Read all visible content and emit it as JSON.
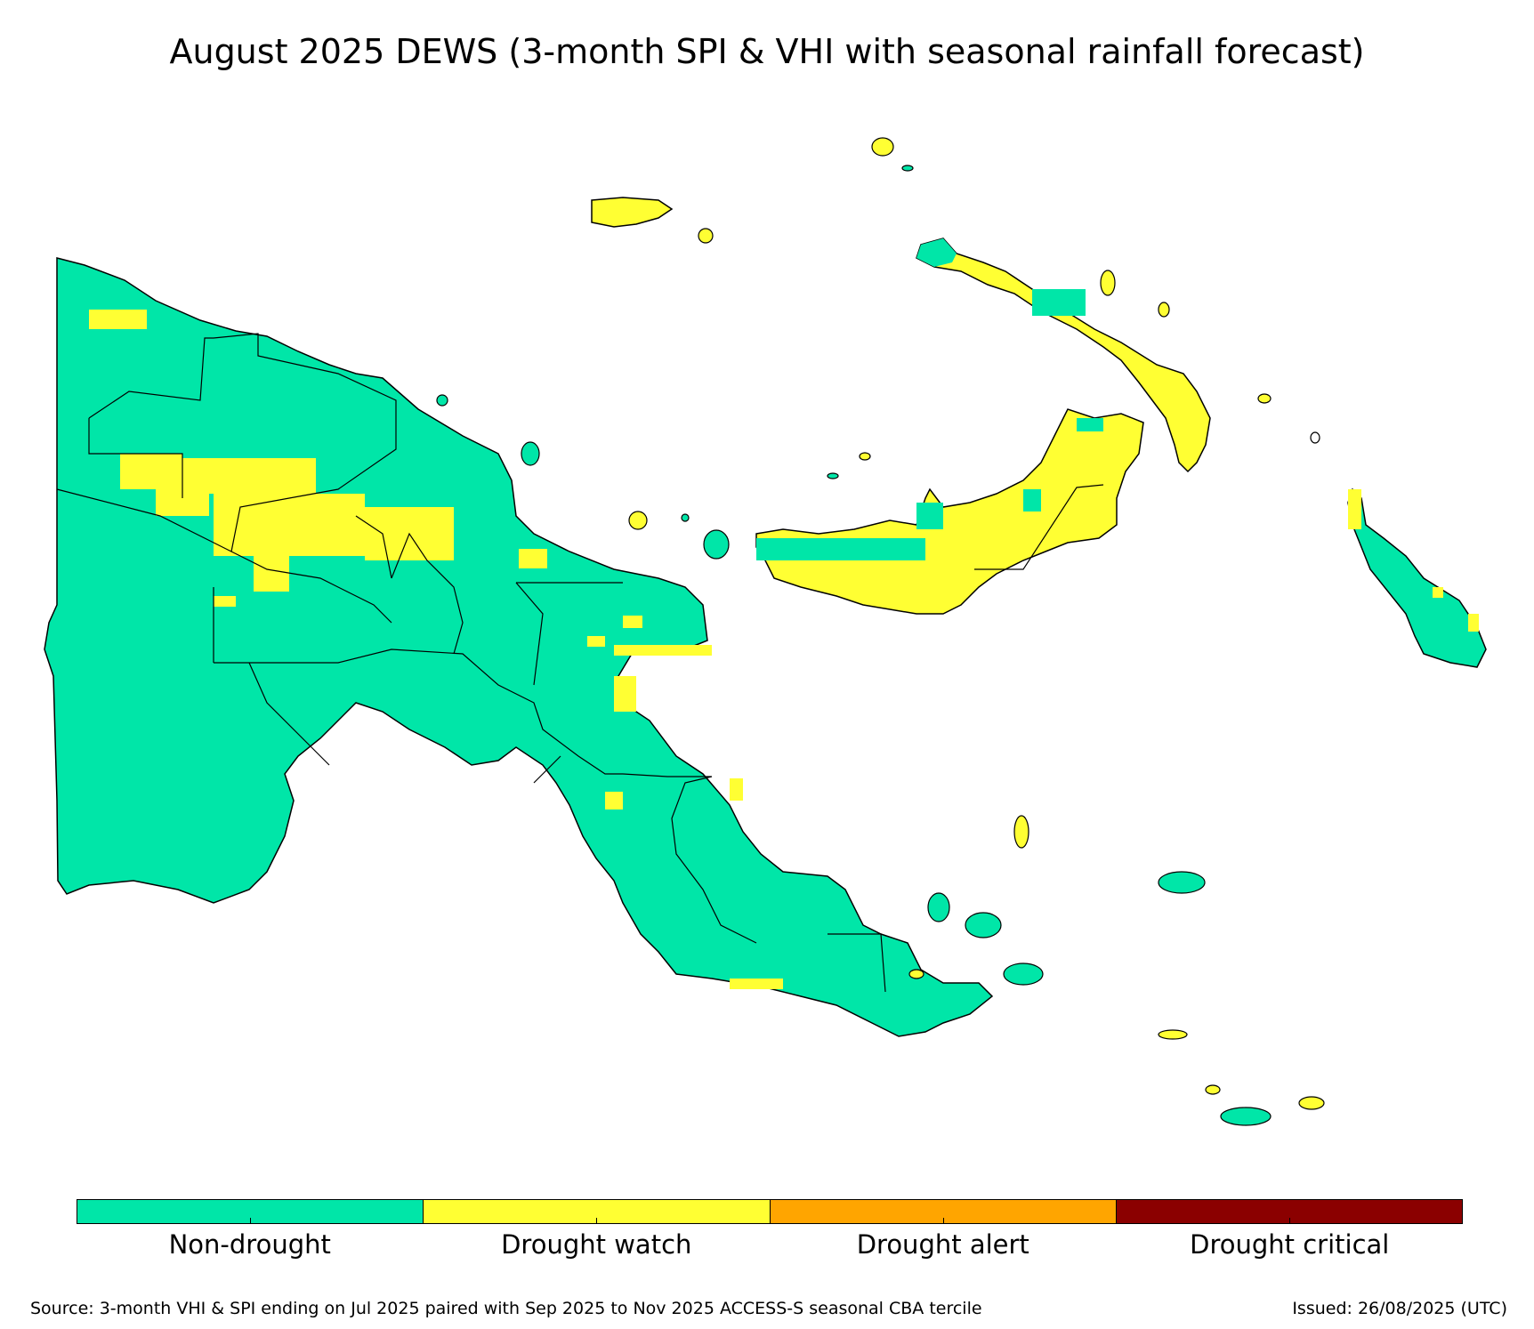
{
  "title": "August 2025 DEWS (3-month SPI & VHI with seasonal rainfall forecast)",
  "legend": {
    "categories": [
      {
        "label": "Non-drought",
        "color": "#00e6a8"
      },
      {
        "label": "Drought watch",
        "color": "#ffff33"
      },
      {
        "label": "Drought alert",
        "color": "#ffa500"
      },
      {
        "label": "Drought critical",
        "color": "#8b0000"
      }
    ]
  },
  "footer": {
    "source": "Source: 3-month VHI & SPI ending on Jul 2025 paired with Sep 2025 to Nov 2025 ACCESS-S seasonal CBA tercile",
    "issued": "Issued: 26/08/2025 (UTC)"
  },
  "colors": {
    "non_drought": "#00e6a8",
    "drought_watch": "#ffff33",
    "outline": "#000000"
  }
}
